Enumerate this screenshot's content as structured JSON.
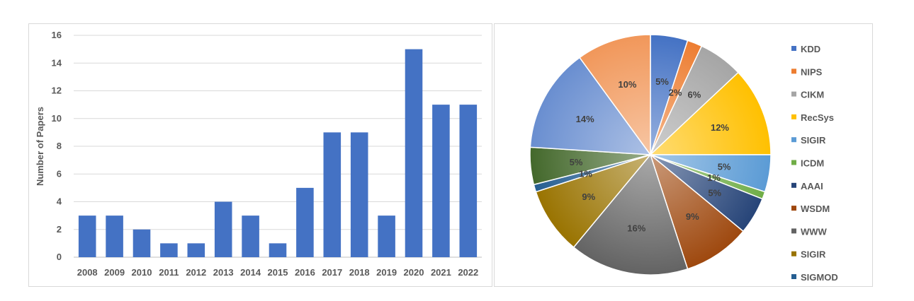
{
  "chart_data": [
    {
      "type": "bar",
      "ylabel": "Number of Papers",
      "xlabel": "",
      "ylim": [
        0,
        16
      ],
      "yticks": [
        0,
        2,
        4,
        6,
        8,
        10,
        12,
        14,
        16
      ],
      "grid": true,
      "categories": [
        "2008",
        "2009",
        "2010",
        "2011",
        "2012",
        "2013",
        "2014",
        "2015",
        "2016",
        "2017",
        "2018",
        "2019",
        "2020",
        "2021",
        "2022"
      ],
      "values": [
        3,
        3,
        2,
        1,
        1,
        4,
        3,
        1,
        5,
        9,
        9,
        3,
        15,
        11,
        11
      ],
      "color": "#4472c4"
    },
    {
      "type": "pie",
      "legend_position": "right",
      "slices": [
        {
          "label": "KDD",
          "value": 5,
          "text": "5%",
          "color": "#4472c4"
        },
        {
          "label": "NIPS",
          "value": 2,
          "text": "2%",
          "color": "#ed7d31"
        },
        {
          "label": "CIKM",
          "value": 6,
          "text": "6%",
          "color": "#a5a5a5"
        },
        {
          "label": "RecSys",
          "value": 12,
          "text": "12%",
          "color": "#ffc000"
        },
        {
          "label": "SIGIR",
          "value": 5,
          "text": "5%",
          "color": "#5b9bd5"
        },
        {
          "label": "ICDM",
          "value": 1,
          "text": "1%",
          "color": "#70ad47"
        },
        {
          "label": "AAAI",
          "value": 5,
          "text": "5%",
          "color": "#264478"
        },
        {
          "label": "WSDM",
          "value": 9,
          "text": "9%",
          "color": "#9e480e"
        },
        {
          "label": "WWW",
          "value": 16,
          "text": "16%",
          "color": "#636363"
        },
        {
          "label": "SIGIR",
          "value": 9,
          "text": "9%",
          "color": "#997300"
        },
        {
          "label": "SIGMOD",
          "value": 1,
          "text": "1%",
          "color": "#255e91"
        },
        {
          "label": "",
          "value": 5,
          "text": "5%",
          "color": "#43682b"
        },
        {
          "label": "",
          "value": 14,
          "text": "14%",
          "color": "#698ed0"
        },
        {
          "label": "",
          "value": 10,
          "text": "10%",
          "color": "#f1975a"
        }
      ]
    }
  ]
}
